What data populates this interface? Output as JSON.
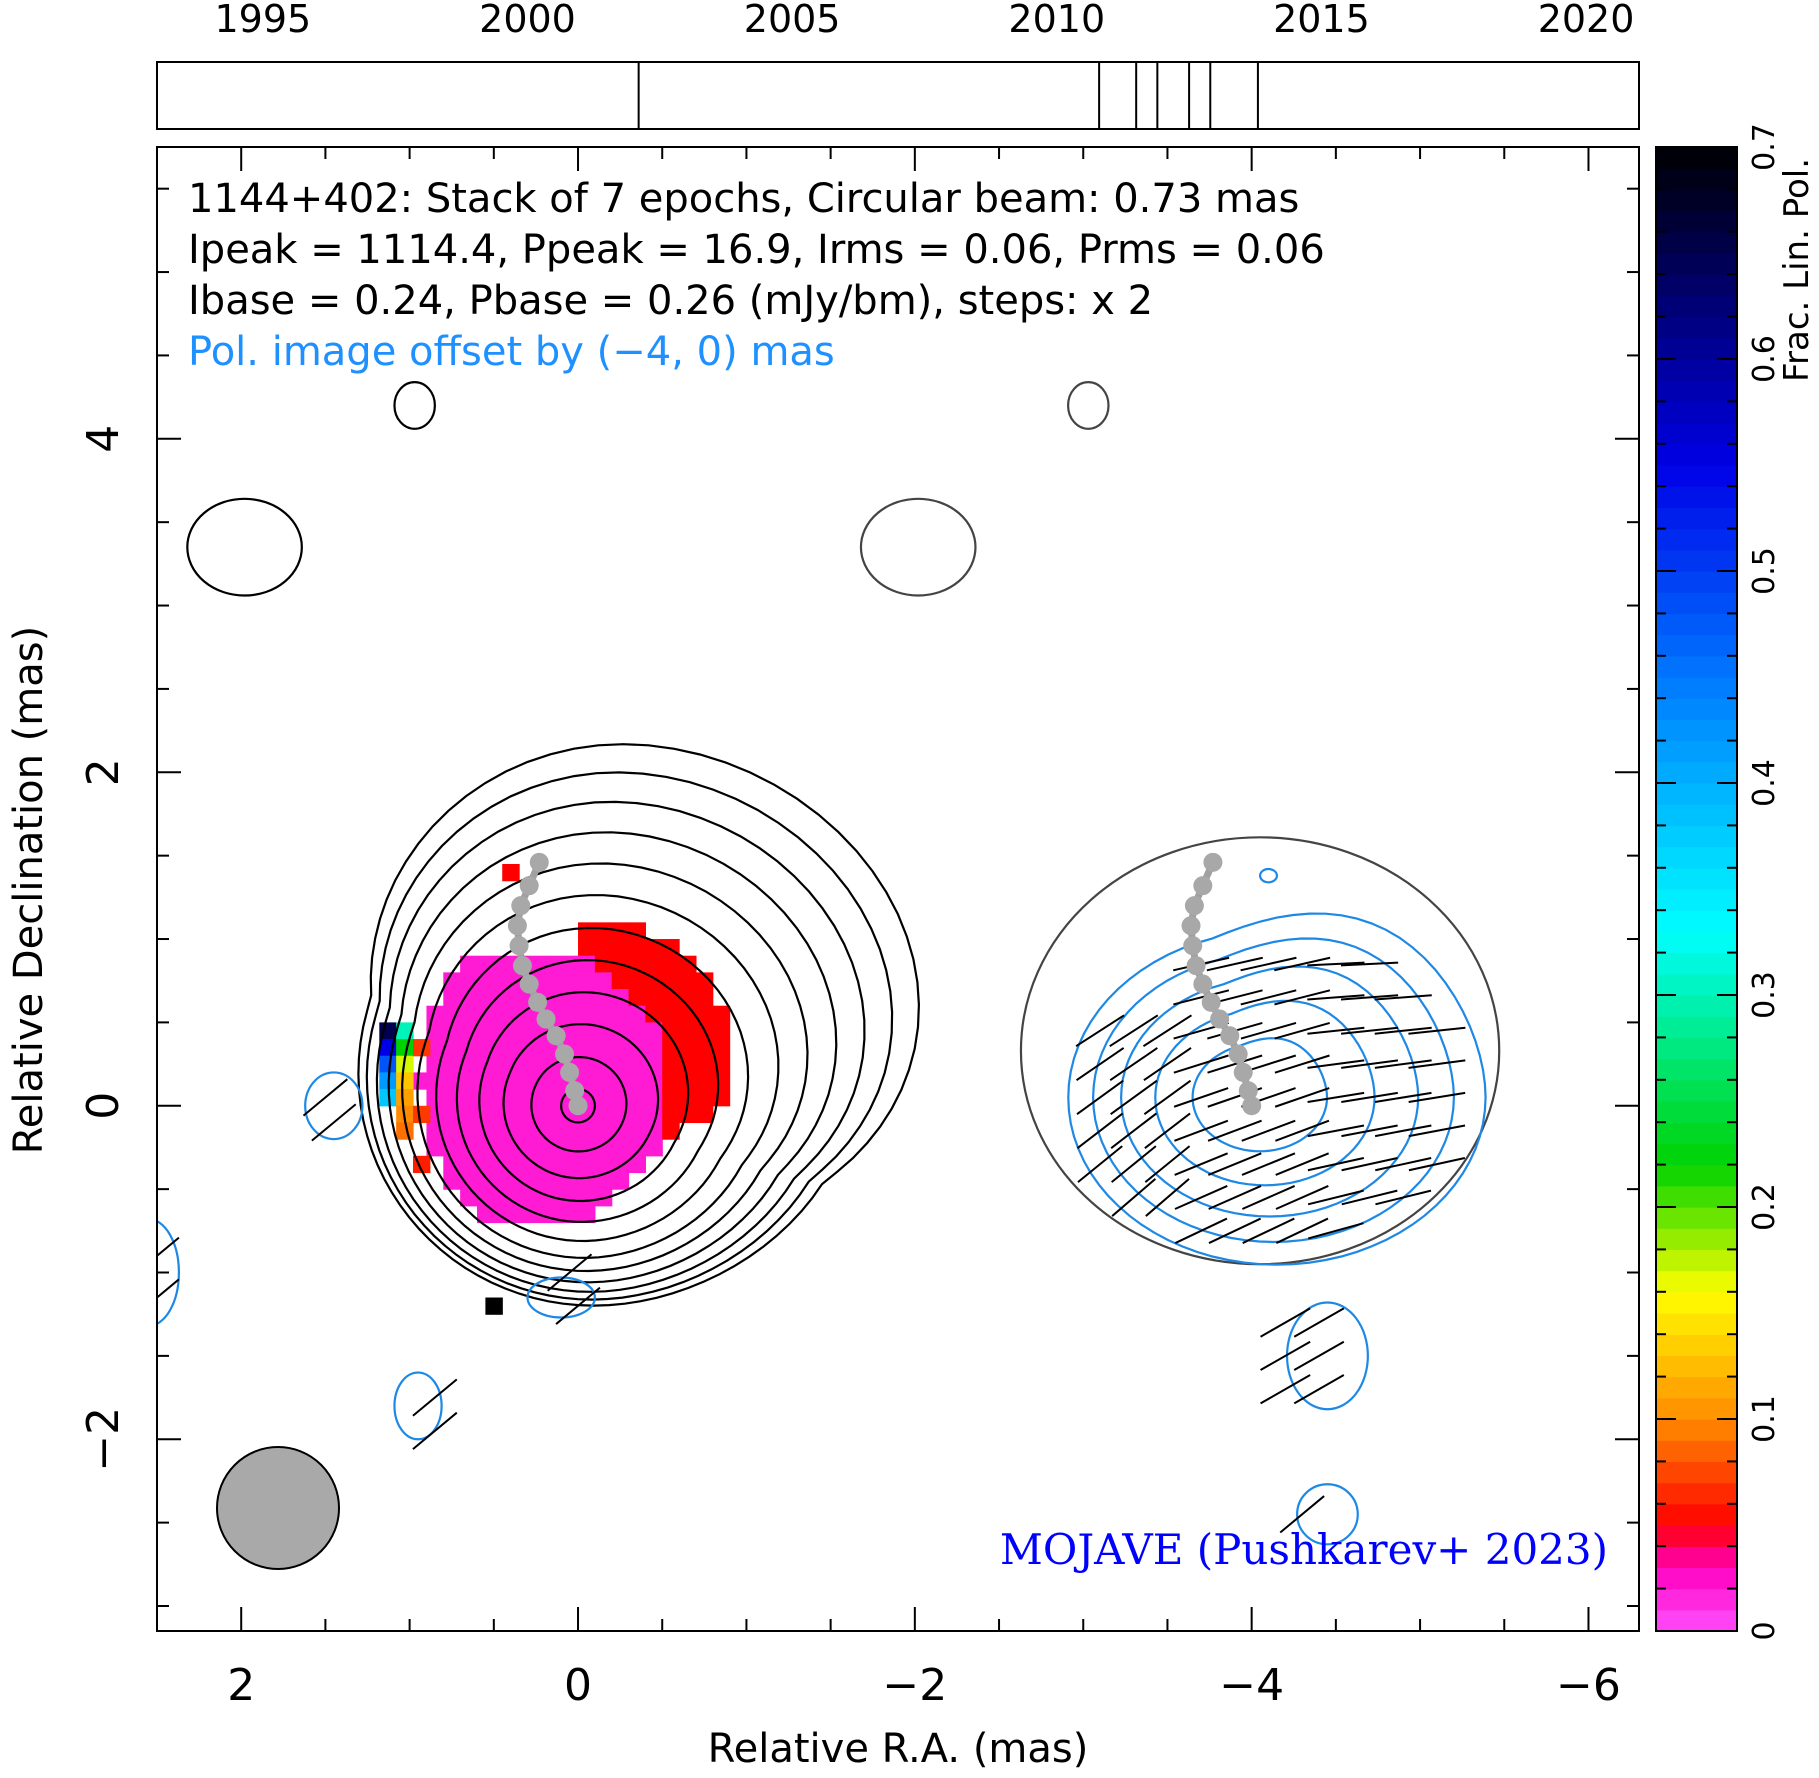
{
  "chart_data": {
    "type": "heatmap",
    "source": "1144+402",
    "header_lines": [
      "1144+402: Stack of 7 epochs, Circular beam: 0.73 mas",
      "Ipeak = 1114.4, Ppeak = 16.9, Irms = 0.06, Prms = 0.06",
      "Ibase = 0.24, Pbase = 0.26 (mJy/bm), steps: x 2"
    ],
    "offset_note": "Pol. image offset by (−4, 0) mas",
    "credit": "MOJAVE (Pushkarev+ 2023)",
    "xlabel": "Relative R.A. (mas)",
    "ylabel": "Relative Declination (mas)",
    "colorbar_label": "Frac. Lin. Pol.",
    "xlim": [
      2.5,
      -6.3
    ],
    "ylim": [
      -3.15,
      5.75
    ],
    "x_ticks": [
      2,
      0,
      -2,
      -4,
      -6
    ],
    "x_tick_labels": [
      "2",
      "0",
      "−2",
      "−4",
      "−6"
    ],
    "y_ticks": [
      -2,
      0,
      2,
      4
    ],
    "y_tick_labels": [
      "−2",
      "0",
      "2",
      "4"
    ],
    "colorbar_ticks": [
      0,
      0.1,
      0.2,
      0.3,
      0.4,
      0.5,
      0.6,
      0.7
    ],
    "colorbar_tick_labels": [
      "0",
      "0.1",
      "0.2",
      "0.3",
      "0.4",
      "0.5",
      "0.6",
      "0.7"
    ],
    "colorbar_range": [
      0,
      0.7
    ],
    "timeline": {
      "range": [
        1993,
        2021
      ],
      "tick_years": [
        1995,
        2000,
        2005,
        2010,
        2015,
        2020
      ],
      "tick_labels": [
        "1995",
        "2000",
        "2005",
        "2010",
        "2015",
        "2020"
      ],
      "epochs": [
        2002.1,
        2010.8,
        2011.5,
        2011.9,
        2012.5,
        2012.9,
        2013.8
      ]
    },
    "beam_mas": 0.73,
    "pol_offset_mas": [
      -4,
      0
    ],
    "stokes_I_contours": {
      "center": [
        0,
        0
      ],
      "levels": [
        {
          "r": 0.1,
          "elong": 0.0
        },
        {
          "r": 0.28,
          "elong": 0.05
        },
        {
          "r": 0.45,
          "elong": 0.12
        },
        {
          "r": 0.6,
          "elong": 0.2
        },
        {
          "r": 0.74,
          "elong": 0.28
        },
        {
          "r": 0.87,
          "elong": 0.36
        },
        {
          "r": 0.99,
          "elong": 0.45
        },
        {
          "r": 1.09,
          "elong": 0.55
        },
        {
          "r": 1.18,
          "elong": 0.65
        },
        {
          "r": 1.26,
          "elong": 0.75
        },
        {
          "r": 1.33,
          "elong": 0.85
        },
        {
          "r": 1.39,
          "elong": 0.95
        }
      ],
      "islands": [
        {
          "x": 1.98,
          "y": 3.35,
          "rx": 0.34,
          "ry": 0.29
        },
        {
          "x": 0.97,
          "y": 4.2,
          "rx": 0.12,
          "ry": 0.14
        }
      ]
    },
    "pol_contours": {
      "center": [
        -4,
        0
      ],
      "levels": [
        0.38,
        0.62,
        0.84,
        1.02,
        1.18
      ],
      "outer_I": {
        "cx": -4.05,
        "cy": 0.33,
        "rx": 1.42,
        "ry": 1.28
      }
    },
    "jet_ridge": [
      [
        0,
        0
      ],
      [
        0.02,
        0.09
      ],
      [
        0.05,
        0.2
      ],
      [
        0.08,
        0.31
      ],
      [
        0.13,
        0.42
      ],
      [
        0.19,
        0.52
      ],
      [
        0.24,
        0.62
      ],
      [
        0.29,
        0.73
      ],
      [
        0.33,
        0.84
      ],
      [
        0.35,
        0.96
      ],
      [
        0.36,
        1.08
      ],
      [
        0.34,
        1.2
      ],
      [
        0.29,
        1.32
      ],
      [
        0.23,
        1.46
      ]
    ],
    "frac_pol_regions": [
      {
        "x": 0.3,
        "y": 0.1,
        "r": 0.85,
        "value": 0.02
      },
      {
        "x": -0.45,
        "y": 0.55,
        "rx": 0.55,
        "ry": 0.75,
        "value": 0.05
      },
      {
        "x": 1.13,
        "y": 0.45,
        "value": 0.65
      },
      {
        "x": 1.13,
        "y": 0.35,
        "value": 0.55
      },
      {
        "x": 1.13,
        "y": 0.25,
        "value": 0.48
      },
      {
        "x": 1.13,
        "y": 0.15,
        "value": 0.42
      },
      {
        "x": 1.13,
        "y": 0.05,
        "value": 0.38
      },
      {
        "x": 1.03,
        "y": 0.45,
        "value": 0.3
      },
      {
        "x": 1.03,
        "y": 0.35,
        "value": 0.22
      },
      {
        "x": 1.03,
        "y": 0.25,
        "value": 0.17
      },
      {
        "x": 1.03,
        "y": 0.15,
        "value": 0.13
      },
      {
        "x": 1.03,
        "y": 0.05,
        "value": 0.11
      },
      {
        "x": 1.03,
        "y": -0.05,
        "value": 0.1
      },
      {
        "x": 1.03,
        "y": -0.15,
        "value": 0.09
      },
      {
        "x": 0.93,
        "y": 0.35,
        "value": 0.07
      },
      {
        "x": 0.93,
        "y": -0.05,
        "value": 0.07
      },
      {
        "x": 0.93,
        "y": -0.35,
        "value": 0.06
      }
    ]
  }
}
